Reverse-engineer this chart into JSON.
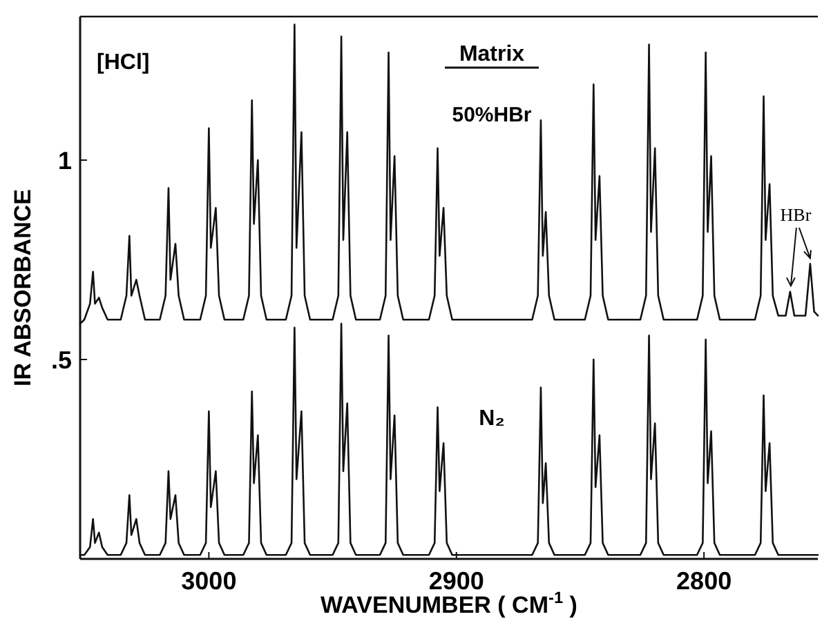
{
  "chart_data": {
    "type": "line",
    "xlabel": "WAVENUMBER ( CM$^{-1}$ )",
    "ylabel": "IR ABSORBANCE",
    "xlim": [
      3052,
      2754
    ],
    "ylim": [
      0,
      1.36
    ],
    "xticks": [
      3000,
      2900,
      2800
    ],
    "yticks": [
      {
        "value": 0.5,
        "label": ".5"
      },
      1
    ],
    "grid": false,
    "marker": "none",
    "line_style": "solid",
    "tick_labels": true,
    "annotations": [
      "[HCl]",
      "Matrix",
      "50%HBr",
      "N₂",
      {
        "text": "HBr",
        "x": 2757.1,
        "y": 0.74
      }
    ],
    "series": [
      {
        "color": "#111111",
        "x": [
          3052,
          3050.3,
          3048,
          3046.8,
          3046,
          3044.4,
          3043.1,
          3040.9,
          3035.6,
          3033.3,
          3032.1,
          3031.3,
          3029.3,
          3028,
          3025.8,
          3019.8,
          3017.5,
          3016.3,
          3015.5,
          3013.5,
          3012.2,
          3010,
          3003.5,
          3001.2,
          3000,
          2999.2,
          2997.2,
          2995.9,
          2993.7,
          2986.1,
          2983.8,
          2982.6,
          2981.8,
          2980.2,
          2978.9,
          2976.7,
          2968.9,
          2966.6,
          2965.4,
          2964.6,
          2962.6,
          2961.3,
          2959.1,
          2950,
          2947.7,
          2946.5,
          2945.7,
          2944.1,
          2942.8,
          2940.6,
          2930.9,
          2928.6,
          2927.4,
          2926.6,
          2925,
          2923.7,
          2921.5,
          2911.1,
          2908.8,
          2907.6,
          2906.8,
          2905.2,
          2903.9,
          2901.7,
          2885,
          2869.4,
          2867.1,
          2865.9,
          2865.1,
          2863.9,
          2862.6,
          2860.4,
          2848.1,
          2845.8,
          2844.6,
          2843.8,
          2842.2,
          2840.9,
          2838.7,
          2825.7,
          2823.4,
          2822.2,
          2821.4,
          2819.8,
          2818.5,
          2816.3,
          2802.8,
          2800.5,
          2799.3,
          2798.5,
          2797.1,
          2795.8,
          2793.6,
          2779.4,
          2777.1,
          2775.9,
          2775.1,
          2773.5,
          2772.2,
          2770,
          2767,
          2765.2,
          2763.5,
          2759,
          2757.1,
          2755.5,
          2754
        ],
        "values": [
          0.59,
          0.6,
          0.64,
          0.72,
          0.64,
          0.655,
          0.63,
          0.6,
          0.6,
          0.66,
          0.81,
          0.66,
          0.7,
          0.66,
          0.6,
          0.6,
          0.66,
          0.93,
          0.7,
          0.79,
          0.66,
          0.6,
          0.6,
          0.66,
          1.08,
          0.78,
          0.88,
          0.66,
          0.6,
          0.6,
          0.66,
          1.15,
          0.84,
          1.0,
          0.66,
          0.6,
          0.6,
          0.66,
          1.34,
          0.78,
          1.07,
          0.66,
          0.6,
          0.6,
          0.66,
          1.31,
          0.8,
          1.07,
          0.66,
          0.6,
          0.6,
          0.66,
          1.27,
          0.8,
          1.01,
          0.66,
          0.6,
          0.6,
          0.66,
          1.03,
          0.76,
          0.88,
          0.66,
          0.6,
          0.6,
          0.6,
          0.66,
          1.1,
          0.76,
          0.87,
          0.66,
          0.6,
          0.6,
          0.66,
          1.19,
          0.8,
          0.96,
          0.66,
          0.6,
          0.6,
          0.66,
          1.29,
          0.82,
          1.03,
          0.66,
          0.6,
          0.6,
          0.66,
          1.27,
          0.82,
          1.01,
          0.66,
          0.6,
          0.6,
          0.66,
          1.16,
          0.8,
          0.94,
          0.66,
          0.61,
          0.61,
          0.67,
          0.61,
          0.61,
          0.74,
          0.62,
          0.61
        ]
      },
      {
        "color": "#111111",
        "x": [
          3052,
          3050.3,
          3048,
          3046.8,
          3046,
          3044.4,
          3043.1,
          3040.9,
          3035.6,
          3033.3,
          3032.1,
          3031.3,
          3029.3,
          3028,
          3025.8,
          3019.8,
          3017.5,
          3016.3,
          3015.5,
          3013.5,
          3012.2,
          3010,
          3003.5,
          3001.2,
          3000,
          2999.2,
          2997.2,
          2995.9,
          2993.7,
          2986.1,
          2983.8,
          2982.6,
          2981.8,
          2980.2,
          2978.9,
          2976.7,
          2968.9,
          2966.6,
          2965.4,
          2964.6,
          2962.6,
          2961.3,
          2959.1,
          2950,
          2947.7,
          2946.5,
          2945.7,
          2944.1,
          2942.8,
          2940.6,
          2930.9,
          2928.6,
          2927.4,
          2926.6,
          2925,
          2923.7,
          2921.5,
          2911.1,
          2908.8,
          2907.6,
          2906.8,
          2905.2,
          2903.9,
          2901.7,
          2885,
          2869.4,
          2867.1,
          2865.9,
          2865.1,
          2863.9,
          2862.6,
          2860.4,
          2848.1,
          2845.8,
          2844.6,
          2843.8,
          2842.2,
          2840.9,
          2838.7,
          2825.7,
          2823.4,
          2822.2,
          2821.4,
          2819.8,
          2818.5,
          2816.3,
          2802.8,
          2800.5,
          2799.3,
          2798.5,
          2797.1,
          2795.8,
          2793.6,
          2779.4,
          2777.1,
          2775.9,
          2775.1,
          2773.5,
          2772.2,
          2770,
          2754
        ],
        "values": [
          0.01,
          0.01,
          0.03,
          0.1,
          0.04,
          0.066,
          0.03,
          0.01,
          0.01,
          0.04,
          0.16,
          0.06,
          0.1,
          0.04,
          0.01,
          0.01,
          0.04,
          0.22,
          0.1,
          0.16,
          0.04,
          0.01,
          0.01,
          0.04,
          0.37,
          0.13,
          0.22,
          0.04,
          0.01,
          0.01,
          0.04,
          0.42,
          0.19,
          0.31,
          0.04,
          0.01,
          0.01,
          0.04,
          0.58,
          0.2,
          0.37,
          0.04,
          0.01,
          0.01,
          0.04,
          0.59,
          0.22,
          0.39,
          0.04,
          0.01,
          0.01,
          0.04,
          0.56,
          0.2,
          0.36,
          0.04,
          0.01,
          0.01,
          0.04,
          0.38,
          0.17,
          0.29,
          0.04,
          0.01,
          0.01,
          0.01,
          0.04,
          0.43,
          0.14,
          0.24,
          0.04,
          0.01,
          0.01,
          0.04,
          0.5,
          0.18,
          0.31,
          0.04,
          0.01,
          0.01,
          0.04,
          0.56,
          0.2,
          0.34,
          0.04,
          0.01,
          0.01,
          0.04,
          0.55,
          0.19,
          0.32,
          0.04,
          0.01,
          0.01,
          0.04,
          0.41,
          0.17,
          0.29,
          0.04,
          0.01,
          0.01
        ]
      }
    ]
  }
}
